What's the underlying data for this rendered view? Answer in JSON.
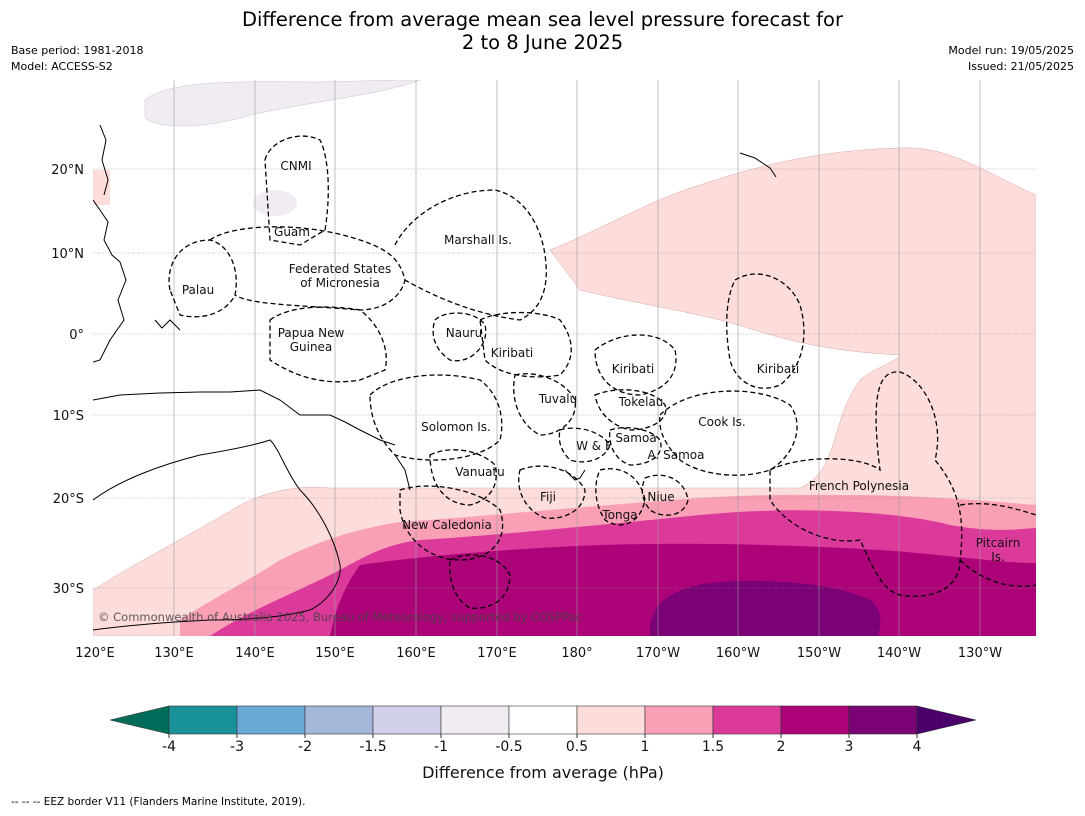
{
  "title_line1": "Difference from average mean sea level pressure forecast for",
  "title_line2": "2 to 8 June 2025",
  "meta": {
    "base_period": "Base period: 1981-2018",
    "model": "Model: ACCESS-S2",
    "model_run": "Model run: 19/05/2025",
    "issued": "Issued: 21/05/2025"
  },
  "map": {
    "lon_labels": [
      "120°E",
      "130°E",
      "140°E",
      "150°E",
      "160°E",
      "170°E",
      "180°",
      "170°W",
      "160°W",
      "150°W",
      "140°W",
      "130°W"
    ],
    "lat_labels": [
      "20°N",
      "10°N",
      "0°",
      "10°S",
      "20°S",
      "30°S"
    ],
    "regions": {
      "cnmi": "CNMI",
      "guam": "Guam",
      "marshall": "Marshall Is.",
      "palau": "Palau",
      "fsm1": "Federated States",
      "fsm2": "of Micronesia",
      "nauru": "Nauru",
      "png1": "Papua New",
      "png2": "Guinea",
      "kiribati_w": "Kiribati",
      "kiribati_c": "Kiribati",
      "kiribati_e": "Kiribati",
      "tuvalu": "Tuvalu",
      "tokelau": "Tokelau",
      "cook": "Cook Is.",
      "solomon": "Solomon Is.",
      "wf": "W & F",
      "samoa": "Samoa",
      "asamoa": "A. Samoa",
      "vanuatu": "Vanuatu",
      "fiji": "Fiji",
      "niue": "Niue",
      "tonga": "Tonga",
      "french_polynesia": "French Polynesia",
      "new_caledonia": "New Caledonia",
      "pitcairn1": "Pitcairn",
      "pitcairn2": "Is."
    },
    "copyright": "© Commonwealth of Australia 2025, Bureau of Meteorology, supported by COSPPac"
  },
  "colorbar": {
    "ticks": [
      "-4",
      "-3",
      "-2",
      "-1.5",
      "-1",
      "-0.5",
      "0.5",
      "1",
      "1.5",
      "2",
      "3",
      "4"
    ],
    "colors": [
      "#1a9299",
      "#69aad4",
      "#a5b8d9",
      "#d0d0e8",
      "#f1ecf3",
      "#ffffff",
      "#fddcdc",
      "#f99fb6",
      "#dc3a9b",
      "#ad0379",
      "#7a0176"
    ],
    "extend_low_color": "#016c59",
    "extend_high_color": "#49006a",
    "label": "Difference from average (hPa)"
  },
  "footer": "-- -- -- EEZ border V11 (Flanders Marine Institute, 2019)."
}
